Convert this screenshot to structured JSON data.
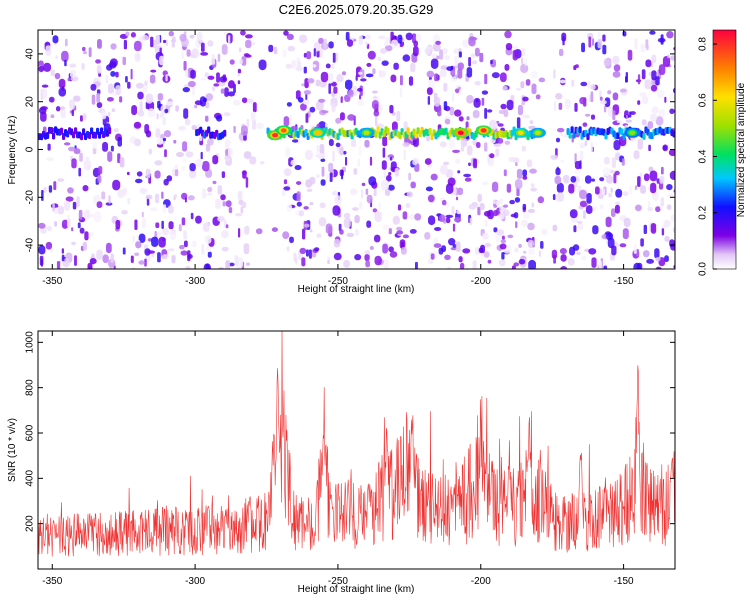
{
  "chart_data": [
    {
      "type": "heatmap",
      "title": "C2E6.2025.079.20.35.G29",
      "xlabel": "Height of straight line (km)",
      "ylabel": "Frequency (Hz)",
      "xlim": [
        -355,
        -132
      ],
      "ylim": [
        -50,
        50
      ],
      "xticks": [
        -350,
        -300,
        -250,
        -200,
        -150
      ],
      "yticks": [
        -40,
        -20,
        0,
        20,
        40
      ],
      "colorbar": {
        "label": "Normalized spectral amplitude",
        "range": [
          0.0,
          0.85
        ],
        "ticks": [
          0.0,
          0.2,
          0.4,
          0.6,
          0.8
        ]
      },
      "band": {
        "frequency_hz": 7,
        "segments": [
          {
            "x_from": -355,
            "x_to": -330,
            "peak": 0.3
          },
          {
            "x_from": -300,
            "x_to": -290,
            "peak": 0.35
          },
          {
            "x_from": -275,
            "x_to": -180,
            "peak": 0.8
          },
          {
            "x_from": -170,
            "x_to": -132,
            "peak": 0.45
          }
        ]
      },
      "hotspots": [
        {
          "x": -272,
          "y": 6,
          "v": 0.8
        },
        {
          "x": -269,
          "y": 8,
          "v": 0.75
        },
        {
          "x": -257,
          "y": 7,
          "v": 0.65
        },
        {
          "x": -240,
          "y": 7,
          "v": 0.55
        },
        {
          "x": -207,
          "y": 7,
          "v": 0.85
        },
        {
          "x": -199,
          "y": 8,
          "v": 0.8
        },
        {
          "x": -186,
          "y": 7,
          "v": 0.6
        },
        {
          "x": -180,
          "y": 7,
          "v": 0.55
        },
        {
          "x": -147,
          "y": 7,
          "v": 0.5
        }
      ],
      "gaps_x": [
        [
          -281,
          -270
        ],
        [
          -223,
          -220
        ],
        [
          -182,
          -175
        ]
      ]
    },
    {
      "type": "line",
      "xlabel": "Height of straight line (km)",
      "ylabel": "SNR (10 * v/v)",
      "xlim": [
        -355,
        -132
      ],
      "ylim": [
        0,
        1050
      ],
      "xticks": [
        -350,
        -300,
        -250,
        -200,
        -150
      ],
      "yticks": [
        200,
        400,
        600,
        800,
        1000
      ],
      "color": "#ee3333",
      "baseline": [
        [
          -355,
          150
        ],
        [
          -320,
          160
        ],
        [
          -290,
          180
        ],
        [
          -276,
          200
        ],
        [
          -272,
          420
        ],
        [
          -270,
          650
        ],
        [
          -268,
          400
        ],
        [
          -265,
          200
        ],
        [
          -258,
          200
        ],
        [
          -255,
          420
        ],
        [
          -252,
          250
        ],
        [
          -240,
          230
        ],
        [
          -233,
          330
        ],
        [
          -226,
          430
        ],
        [
          -222,
          300
        ],
        [
          -210,
          240
        ],
        [
          -205,
          300
        ],
        [
          -200,
          460
        ],
        [
          -196,
          300
        ],
        [
          -190,
          250
        ],
        [
          -185,
          330
        ],
        [
          -178,
          280
        ],
        [
          -172,
          190
        ],
        [
          -165,
          220
        ],
        [
          -155,
          230
        ],
        [
          -148,
          300
        ],
        [
          -145,
          450
        ],
        [
          -142,
          300
        ],
        [
          -132,
          280
        ]
      ],
      "peaks": [
        {
          "x": -271,
          "y": 1030
        },
        {
          "x": -255,
          "y": 760
        },
        {
          "x": -233,
          "y": 700
        },
        {
          "x": -224,
          "y": 840
        },
        {
          "x": -200,
          "y": 680
        },
        {
          "x": -190,
          "y": 600
        },
        {
          "x": -183,
          "y": 760
        },
        {
          "x": -165,
          "y": 620
        },
        {
          "x": -145,
          "y": 1000
        },
        {
          "x": -133,
          "y": 640
        }
      ]
    }
  ]
}
